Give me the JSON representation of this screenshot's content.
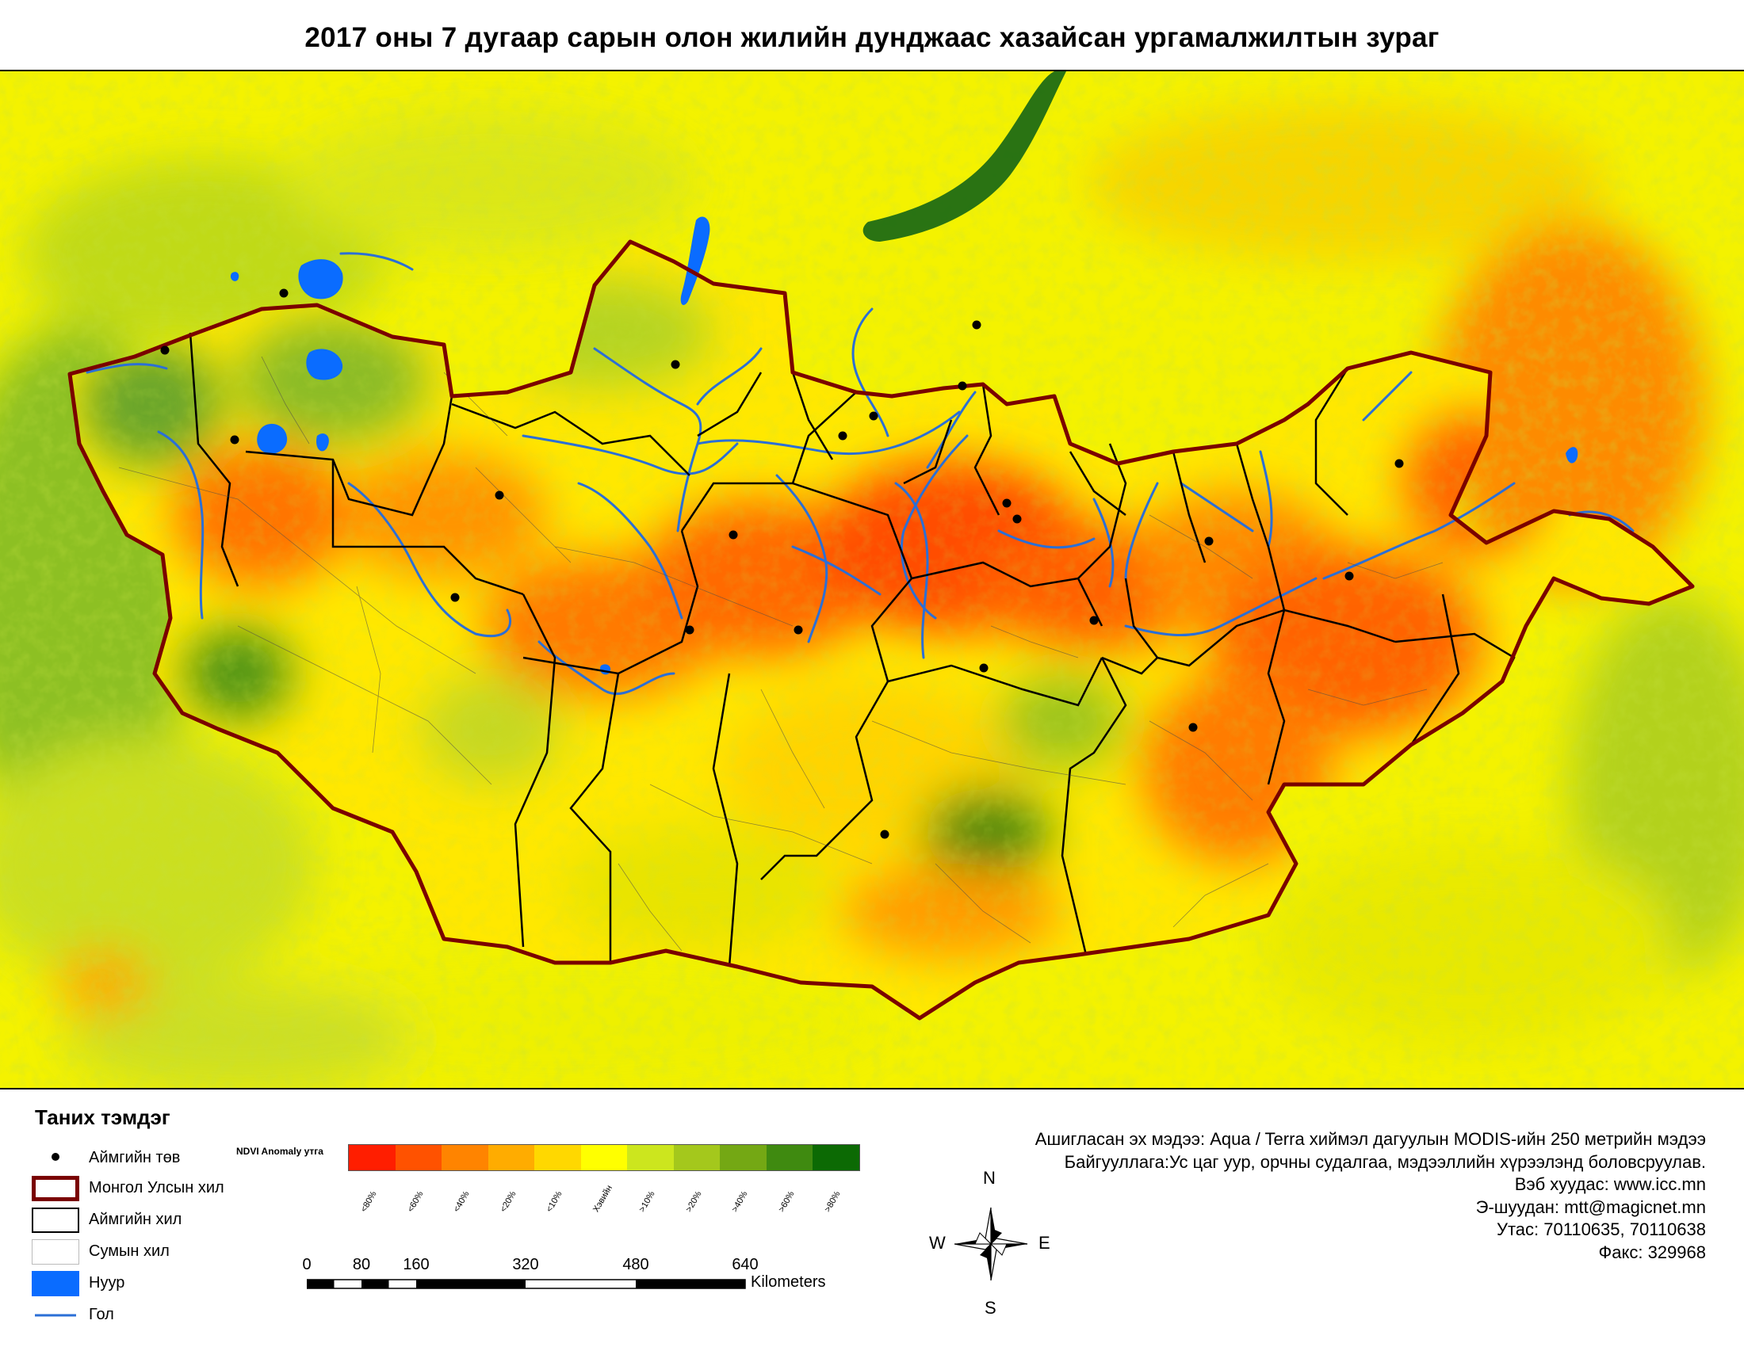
{
  "title": "2017 оны 7 дугаар сарын олон жилийн дунджаас хазайсан ургамалжилтын зураг",
  "legend": {
    "title": "Таних тэмдэг",
    "items": [
      {
        "label": "Аймгийн төв",
        "type": "point"
      },
      {
        "label": "Монгол Улсын хил",
        "type": "national-border"
      },
      {
        "label": "Аймгийн хил",
        "type": "province-border"
      },
      {
        "label": "Сумын хил",
        "type": "soum-border"
      },
      {
        "label": "Нуур",
        "type": "lake"
      },
      {
        "label": "Гол",
        "type": "river"
      }
    ]
  },
  "ndvi": {
    "title": "NDVI Anomaly утга",
    "classes": [
      {
        "label": "<80%",
        "color": "#ff1e00"
      },
      {
        "label": "<60%",
        "color": "#ff5200"
      },
      {
        "label": "<40%",
        "color": "#ff8400"
      },
      {
        "label": "<20%",
        "color": "#ffac00"
      },
      {
        "label": "<10%",
        "color": "#ffd800"
      },
      {
        "label": "Хэвийн",
        "color": "#ffff00"
      },
      {
        "label": ">10%",
        "color": "#cce61e"
      },
      {
        "label": ">20%",
        "color": "#a4c81c"
      },
      {
        "label": ">40%",
        "color": "#74a814"
      },
      {
        "label": ">60%",
        "color": "#3f8a10"
      },
      {
        "label": ">80%",
        "color": "#0c6a04"
      }
    ]
  },
  "scale": {
    "labels": [
      "0",
      "80",
      "160",
      "320",
      "480",
      "640"
    ],
    "unit": "Kilometers"
  },
  "compass": {
    "n": "N",
    "s": "S",
    "e": "E",
    "w": "W"
  },
  "credits": [
    "Ашигласан эх мэдээ: Aqua / Terra хиймэл дагуулын MODIS-ийн 250 метрийн мэдээ",
    "Байгууллага:Ус цаг уур, орчны судалгаа, мэдээллийн хүрээлэнд боловсруулав.",
    "Вэб хуудас: www.icc.mn",
    "Э-шуудан: mtt@magicnet.mn",
    "Утас: 70110635, 70110638",
    "Факс: 329968"
  ],
  "colors": {
    "national_border": "#7a0000",
    "province_border": "#000000",
    "lake": "#0a6cff",
    "river": "#2b6fd6",
    "background_normal": "#ffff00"
  }
}
